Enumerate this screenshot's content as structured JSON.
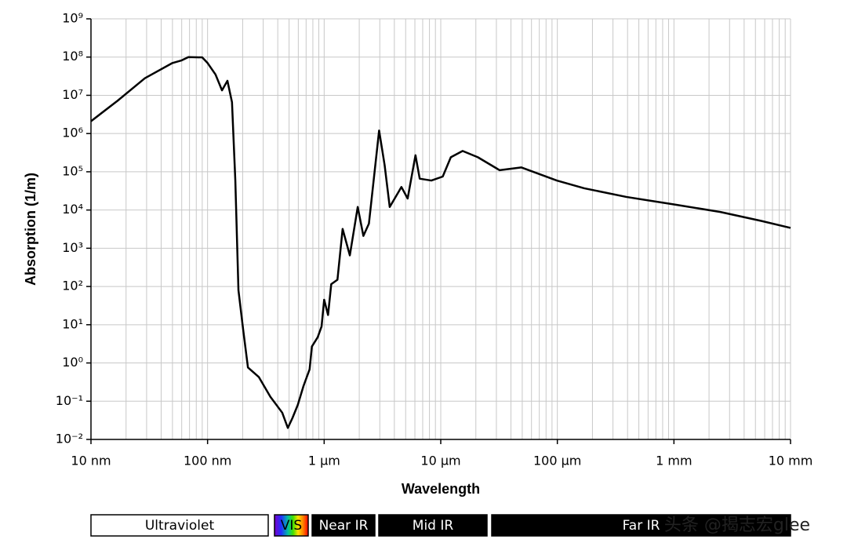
{
  "chart_data": {
    "type": "line",
    "xlabel": "Wavelength",
    "ylabel": "Absorption (1/m)",
    "log_x": true,
    "log_y": true,
    "grid": true,
    "color": "#000000",
    "xlim": [
      10,
      10000000
    ],
    "ylim": [
      0.01,
      1000000000
    ],
    "xticks": [
      {
        "value": 10,
        "label": "10 nm"
      },
      {
        "value": 100,
        "label": "100 nm"
      },
      {
        "value": 1000,
        "label": "1 μm"
      },
      {
        "value": 10000,
        "label": "10 μm"
      },
      {
        "value": 100000,
        "label": "100 μm"
      },
      {
        "value": 1000000,
        "label": "1 mm"
      },
      {
        "value": 10000000,
        "label": "10 mm"
      }
    ],
    "yticks": [
      {
        "value": 0.01,
        "label": "10⁻²"
      },
      {
        "value": 0.1,
        "label": "10⁻¹"
      },
      {
        "value": 1,
        "label": "10⁰"
      },
      {
        "value": 10,
        "label": "10¹"
      },
      {
        "value": 100,
        "label": "10²"
      },
      {
        "value": 1000,
        "label": "10³"
      },
      {
        "value": 10000,
        "label": "10⁴"
      },
      {
        "value": 100000,
        "label": "10⁵"
      },
      {
        "value": 1000000,
        "label": "10⁶"
      },
      {
        "value": 10000000,
        "label": "10⁷"
      },
      {
        "value": 100000000,
        "label": "10⁸"
      },
      {
        "value": 1000000000,
        "label": "10⁹"
      }
    ],
    "x": [
      10,
      17,
      29,
      50,
      60,
      68.5,
      90,
      100,
      117,
      133,
      148,
      162,
      173,
      184,
      202,
      222,
      275,
      346,
      437,
      488,
      534,
      594,
      665,
      750,
      785,
      880,
      950,
      1000,
      1080,
      1150,
      1300,
      1440,
      1660,
      1940,
      2170,
      2420,
      2960,
      3300,
      3650,
      4600,
      5200,
      6070,
      6600,
      8300,
      10400,
      12200,
      15400,
      20800,
      32000,
      49000,
      99000,
      170000,
      390000,
      1000000,
      2500000,
      5600000,
      10000000
    ],
    "values": [
      2100000,
      7300000,
      28000000,
      70000000,
      82000000,
      100000000,
      98000000,
      70000000,
      35000000,
      13500000,
      24000000,
      6600000,
      59000,
      80,
      7.4,
      0.76,
      0.43,
      0.13,
      0.05,
      0.02,
      0.036,
      0.08,
      0.25,
      0.68,
      2.7,
      4.7,
      9,
      45,
      18,
      115,
      150,
      3200,
      650,
      12000,
      2100,
      4400,
      1200000,
      150000,
      12000,
      40000,
      20000,
      270000,
      66000,
      59000,
      75000,
      240000,
      350000,
      240000,
      110000,
      130000,
      59000,
      37000,
      22000,
      14000,
      8900,
      5200,
      3400
    ],
    "bands": [
      "Ultraviolet",
      "VIS",
      "Near IR",
      "Mid IR",
      "Far IR"
    ],
    "watermark": "头条 @揭志宏glee"
  }
}
